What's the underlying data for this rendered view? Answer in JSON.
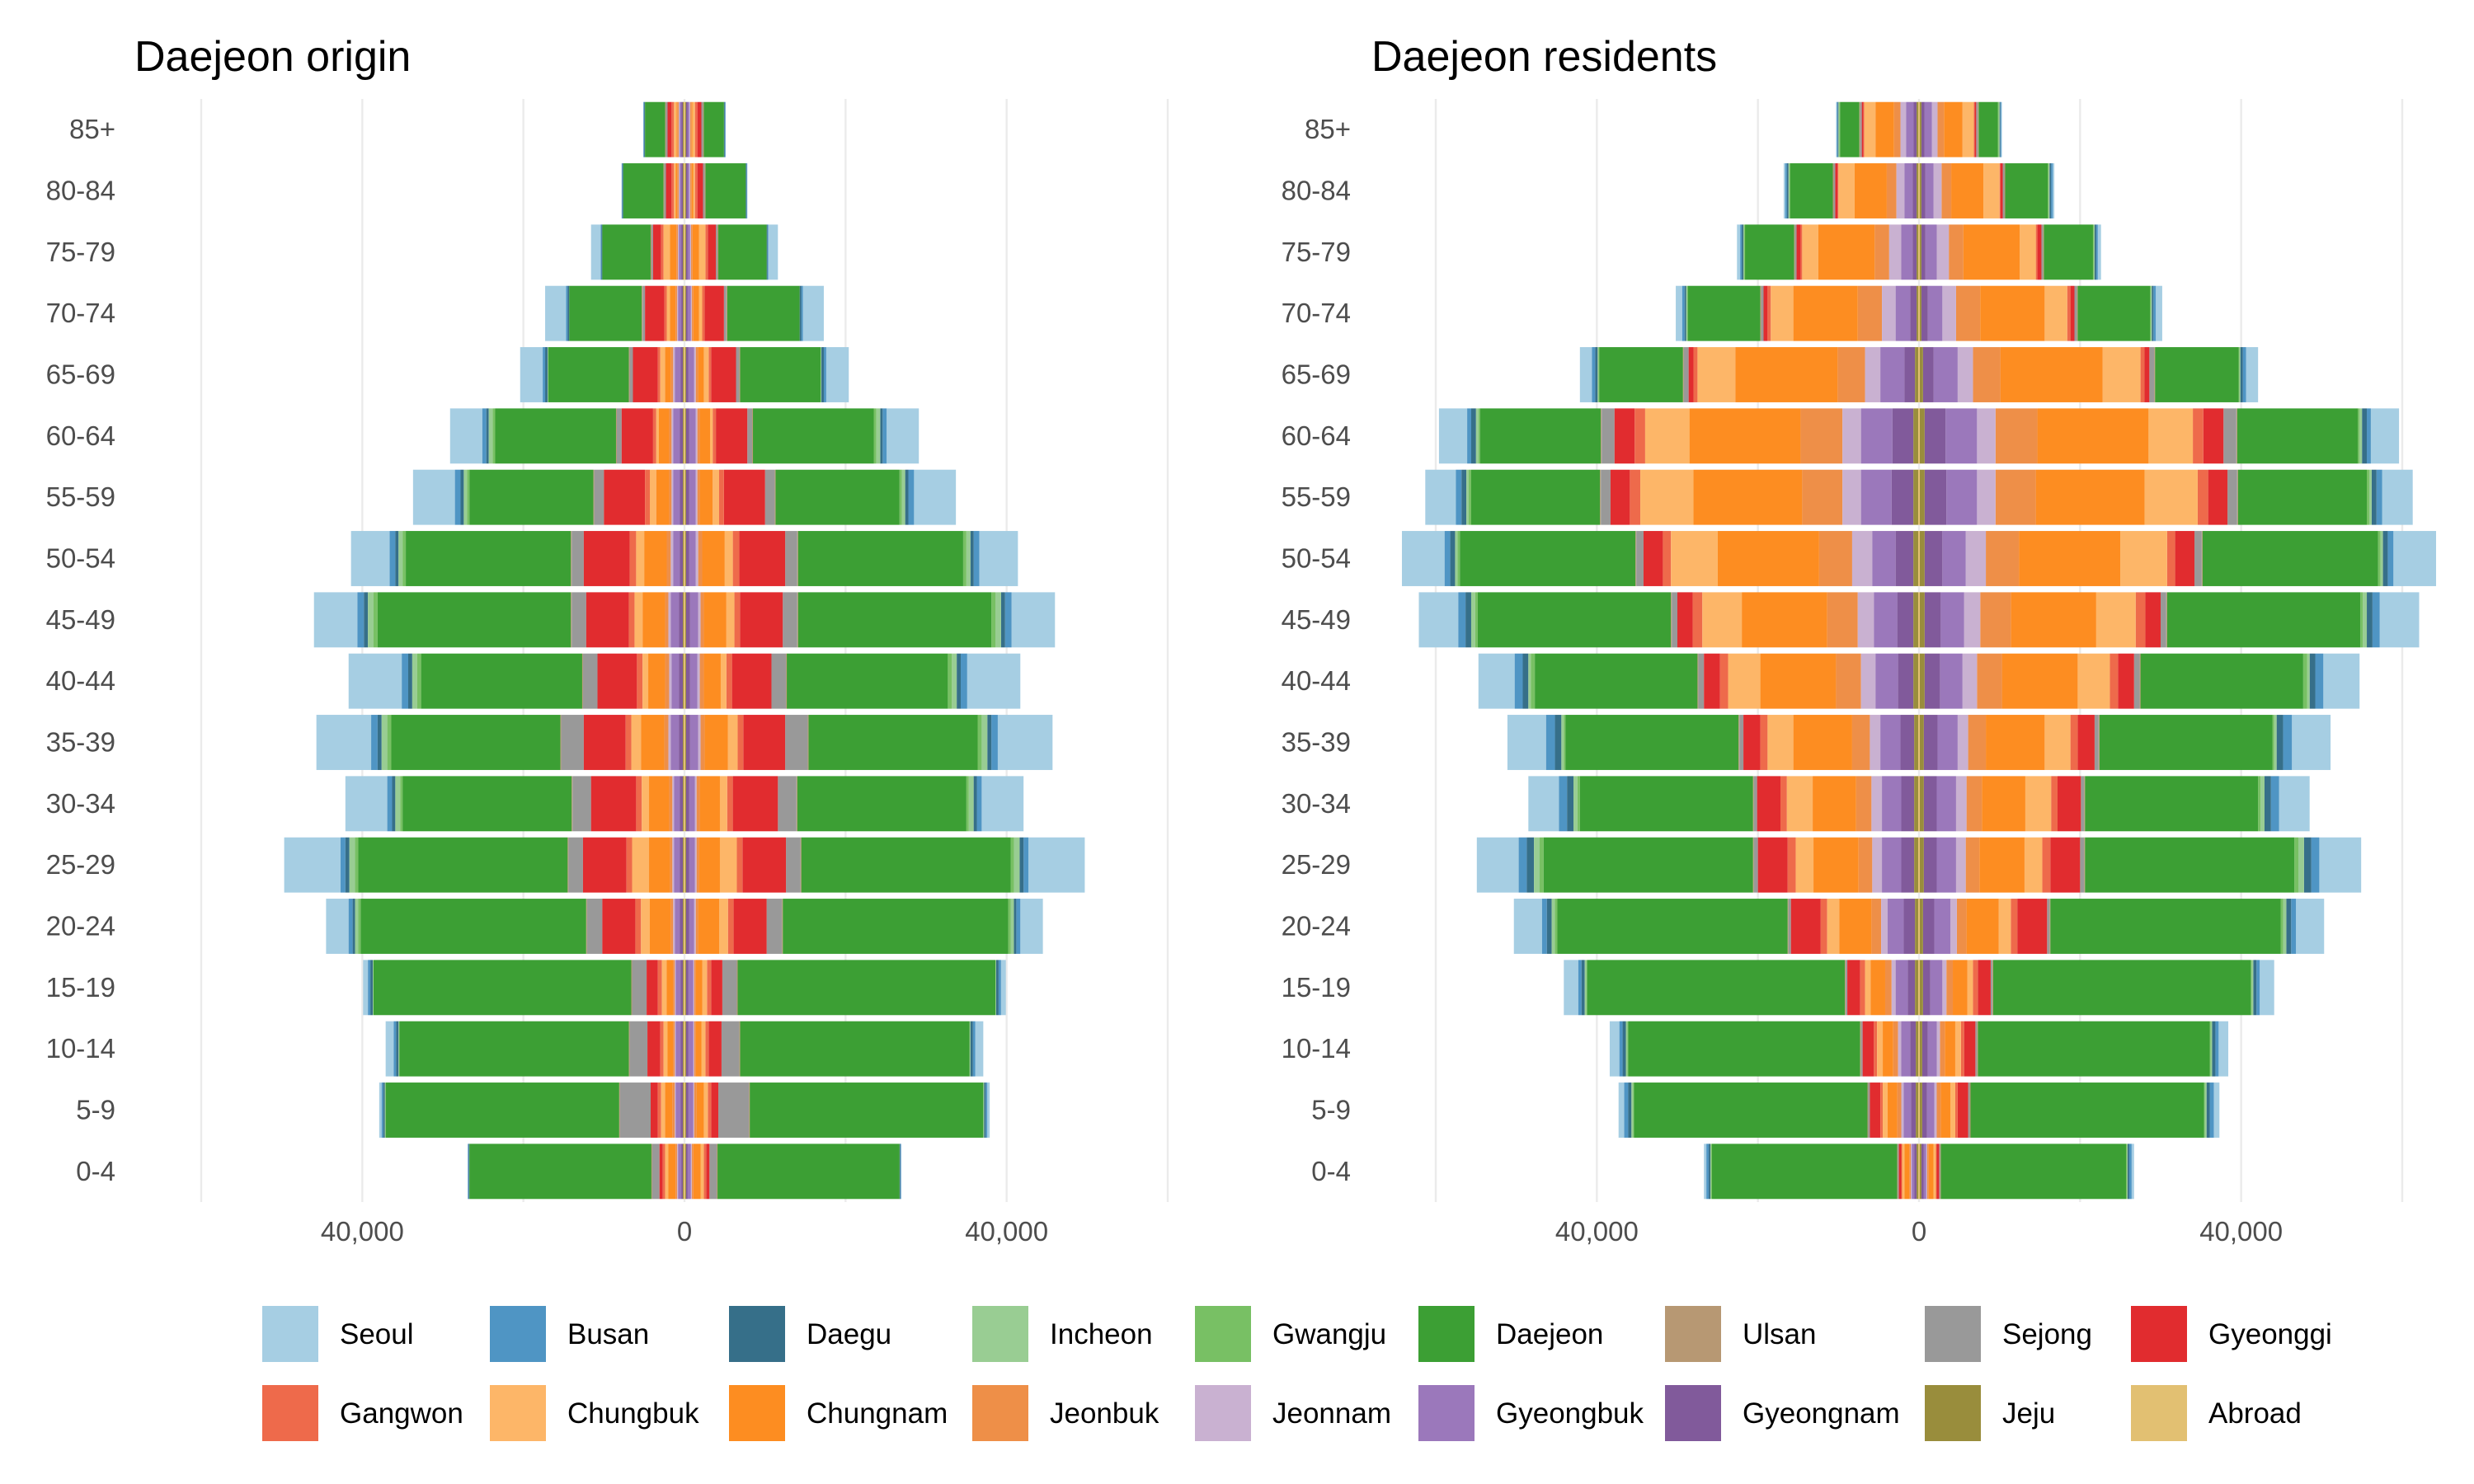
{
  "chart_data": {
    "type": "bar",
    "orientation": "horizontal-stacked-pyramid",
    "age_groups": [
      "0-4",
      "5-9",
      "10-14",
      "15-19",
      "20-24",
      "25-29",
      "30-34",
      "35-39",
      "40-44",
      "45-49",
      "50-54",
      "55-59",
      "60-64",
      "65-69",
      "70-74",
      "75-79",
      "80-84",
      "85+"
    ],
    "regions": [
      "Seoul",
      "Busan",
      "Daegu",
      "Incheon",
      "Gwangju",
      "Daejeon",
      "Ulsan",
      "Sejong",
      "Gyeonggi",
      "Gangwon",
      "Chungbuk",
      "Chungnam",
      "Jeonbuk",
      "Jeonnam",
      "Gyeongbuk",
      "Gyeongnam",
      "Jeju",
      "Abroad"
    ],
    "colors": {
      "Seoul": "#a6cee3",
      "Busan": "#4f95c4",
      "Daegu": "#366f89",
      "Incheon": "#99cd93",
      "Gwangju": "#78c064",
      "Daejeon": "#3c9f34",
      "Ulsan": "#b79873",
      "Sejong": "#999999",
      "Gyeonggi": "#e12c2f",
      "Gangwon": "#ee6a4b",
      "Chungbuk": "#fdb668",
      "Chungnam": "#fd8d21",
      "Jeonbuk": "#ee8f48",
      "Jeonnam": "#c9b1d1",
      "Gyeongbuk": "#9b78bb",
      "Gyeongnam": "#815a9b",
      "Jeju": "#998d3c",
      "Abroad": "#e2c072"
    },
    "x_ticks": [
      {
        "value": -40000,
        "label": "40,000"
      },
      {
        "value": 0,
        "label": "0"
      },
      {
        "value": 40000,
        "label": "40,000"
      }
    ],
    "xlim": [
      -60000,
      60000
    ],
    "grid": true,
    "legend_position": "bottom",
    "panels": [
      {
        "title": "Daejeon origin",
        "note": "Symmetric pyramid: each region value is drawn on both sides of 0.",
        "values": {
          "Seoul": [
            0,
            300,
            1000,
            600,
            2800,
            7000,
            5200,
            6800,
            6600,
            5400,
            4800,
            5200,
            4000,
            2800,
            2600,
            1200,
            0,
            0
          ],
          "Busan": [
            100,
            200,
            300,
            300,
            500,
            600,
            600,
            800,
            800,
            800,
            700,
            700,
            500,
            300,
            200,
            100,
            100,
            100
          ],
          "Daegu": [
            100,
            200,
            300,
            300,
            300,
            500,
            400,
            500,
            500,
            500,
            400,
            400,
            300,
            300,
            200,
            100,
            100,
            100
          ],
          "Incheon": [
            0,
            100,
            100,
            100,
            400,
            700,
            600,
            700,
            600,
            700,
            500,
            400,
            500,
            100,
            0,
            0,
            0,
            0
          ],
          "Gwangju": [
            0,
            0,
            0,
            0,
            300,
            400,
            300,
            500,
            500,
            500,
            400,
            300,
            300,
            0,
            0,
            0,
            0,
            0
          ],
          "Daejeon": [
            22600,
            29000,
            28500,
            32000,
            28000,
            26000,
            21000,
            21000,
            20000,
            24000,
            20500,
            15400,
            15000,
            10000,
            9000,
            6000,
            5000,
            2500
          ],
          "Ulsan": [
            100,
            100,
            100,
            100,
            100,
            100,
            100,
            100,
            100,
            100,
            100,
            100,
            100,
            100,
            100,
            100,
            100,
            100
          ],
          "Sejong": [
            900,
            3800,
            2200,
            1800,
            1900,
            1800,
            2300,
            2800,
            1800,
            1800,
            1500,
            1200,
            600,
            400,
            300,
            200,
            200,
            200
          ],
          "Gyeonggi": [
            400,
            900,
            1600,
            1400,
            4100,
            5400,
            5600,
            5200,
            4900,
            5300,
            5700,
            5100,
            3900,
            3100,
            2400,
            1000,
            700,
            500
          ],
          "Gangwon": [
            300,
            400,
            400,
            500,
            700,
            700,
            700,
            700,
            700,
            700,
            800,
            600,
            400,
            300,
            300,
            300,
            300,
            300
          ],
          "Chungbuk": [
            400,
            500,
            500,
            600,
            1100,
            2100,
            900,
            1200,
            700,
            1000,
            1000,
            800,
            300,
            600,
            400,
            800,
            200,
            300
          ],
          "Chungnam": [
            900,
            900,
            700,
            800,
            2600,
            2600,
            2500,
            2900,
            2100,
            2800,
            2800,
            1600,
            1300,
            700,
            700,
            800,
            200,
            100
          ],
          "Jeonbuk": [
            200,
            300,
            200,
            200,
            300,
            300,
            400,
            500,
            500,
            400,
            500,
            300,
            300,
            300,
            200,
            200,
            200,
            200
          ],
          "Jeonnam": [
            100,
            100,
            100,
            100,
            200,
            200,
            200,
            300,
            300,
            300,
            300,
            200,
            200,
            200,
            100,
            100,
            100,
            100
          ],
          "Gyeongbuk": [
            400,
            600,
            600,
            600,
            600,
            700,
            700,
            1000,
            900,
            1000,
            800,
            800,
            800,
            700,
            400,
            300,
            200,
            200
          ],
          "Gyeongnam": [
            200,
            300,
            300,
            300,
            400,
            400,
            400,
            500,
            500,
            500,
            400,
            400,
            400,
            300,
            200,
            200,
            200,
            200
          ],
          "Jeju": [
            100,
            100,
            100,
            100,
            100,
            100,
            100,
            100,
            100,
            100,
            100,
            100,
            100,
            100,
            100,
            100,
            100,
            100
          ],
          "Abroad": [
            100,
            100,
            100,
            100,
            100,
            100,
            100,
            100,
            100,
            100,
            100,
            100,
            100,
            100,
            100,
            100,
            100,
            100
          ]
        }
      },
      {
        "title": "Daejeon residents",
        "note": "Symmetric pyramid: each region value is drawn on both sides of 0.",
        "values": {
          "Seoul": [
            300,
            700,
            1200,
            1800,
            3500,
            5200,
            3800,
            4800,
            4500,
            4900,
            5300,
            3800,
            3500,
            1500,
            800,
            400,
            200,
            100
          ],
          "Busan": [
            300,
            500,
            400,
            400,
            600,
            1000,
            1000,
            1100,
            1000,
            900,
            700,
            700,
            500,
            400,
            300,
            200,
            200,
            100
          ],
          "Daegu": [
            200,
            400,
            400,
            400,
            600,
            900,
            800,
            800,
            700,
            700,
            600,
            600,
            600,
            300,
            200,
            200,
            200,
            100
          ],
          "Incheon": [
            100,
            200,
            200,
            200,
            400,
            700,
            500,
            300,
            300,
            500,
            300,
            300,
            300,
            100,
            100,
            100,
            100,
            100
          ],
          "Gwangju": [
            100,
            100,
            100,
            100,
            300,
            500,
            300,
            200,
            500,
            300,
            300,
            300,
            200,
            100,
            100,
            100,
            100,
            100
          ],
          "Daejeon": [
            23000,
            29000,
            28800,
            32000,
            28600,
            26000,
            21500,
            21500,
            20200,
            24000,
            21800,
            16000,
            15000,
            10400,
            9000,
            6100,
            5300,
            2400
          ],
          "Ulsan": [
            100,
            100,
            100,
            100,
            100,
            100,
            100,
            100,
            100,
            100,
            100,
            100,
            100,
            100,
            100,
            100,
            100,
            100
          ],
          "Sejong": [
            100,
            200,
            200,
            200,
            300,
            500,
            400,
            500,
            700,
            700,
            900,
            1200,
            1600,
            600,
            300,
            200,
            200,
            200
          ],
          "Gyeonggi": [
            300,
            1300,
            1400,
            1600,
            3700,
            3700,
            2900,
            2100,
            2000,
            1900,
            2400,
            2400,
            2500,
            600,
            500,
            500,
            300,
            200
          ],
          "Gangwon": [
            100,
            300,
            400,
            600,
            800,
            1000,
            800,
            900,
            1000,
            1200,
            1000,
            1300,
            1300,
            500,
            400,
            200,
            100,
            100
          ],
          "Chungbuk": [
            300,
            600,
            700,
            700,
            1500,
            2200,
            3200,
            3200,
            4000,
            4900,
            5800,
            6600,
            5500,
            4700,
            2800,
            2000,
            2000,
            1400
          ],
          "Chungnam": [
            600,
            1200,
            1300,
            1800,
            4000,
            5600,
            5400,
            7300,
            9400,
            10600,
            12600,
            13500,
            13800,
            12700,
            8000,
            7000,
            4000,
            2300
          ],
          "Jeonbuk": [
            200,
            500,
            600,
            800,
            1200,
            1700,
            1900,
            2200,
            3100,
            3800,
            4100,
            5000,
            5200,
            3400,
            3000,
            1800,
            1200,
            800
          ],
          "Jeonnam": [
            100,
            300,
            400,
            500,
            800,
            1200,
            1300,
            1300,
            1800,
            2000,
            2500,
            2300,
            2300,
            1900,
            1700,
            1500,
            1000,
            700
          ],
          "Gyeongbuk": [
            300,
            900,
            1100,
            1500,
            2000,
            2400,
            2400,
            2500,
            2800,
            2900,
            2900,
            3800,
            3900,
            3000,
            1800,
            1400,
            1000,
            900
          ],
          "Gyeongnam": [
            300,
            600,
            700,
            900,
            1400,
            1600,
            1600,
            1700,
            1900,
            2000,
            2200,
            2700,
            2600,
            1300,
            800,
            500,
            500,
            400
          ],
          "Jeju": [
            200,
            300,
            300,
            400,
            400,
            500,
            500,
            500,
            600,
            600,
            600,
            600,
            600,
            400,
            200,
            200,
            200,
            200
          ],
          "Abroad": [
            100,
            100,
            100,
            100,
            100,
            100,
            100,
            100,
            100,
            100,
            100,
            100,
            100,
            100,
            100,
            100,
            100,
            100
          ]
        }
      }
    ]
  }
}
